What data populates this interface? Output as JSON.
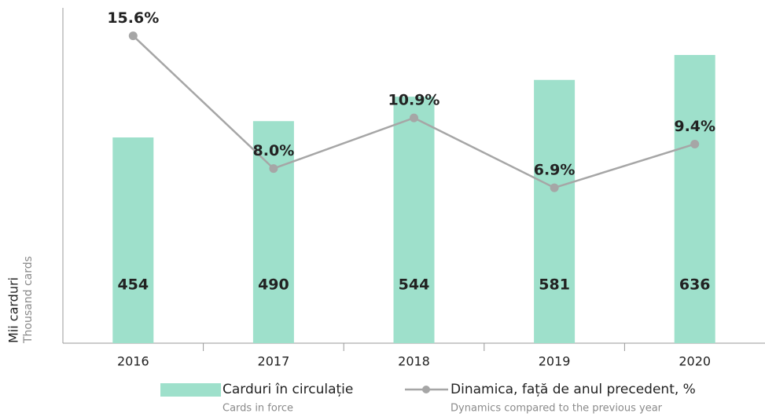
{
  "chart_data": {
    "type": "bar_line",
    "y_label": "Mii carduri",
    "y_label_subtitle": "Thousand cards",
    "categories": [
      "2016",
      "2017",
      "2018",
      "2019",
      "2020"
    ],
    "ylim": [
      0,
      740
    ],
    "y2lim": [
      -2,
      17.2
    ],
    "series": [
      {
        "name": "Carduri în circulație",
        "legend_subtitle": "Cards in force",
        "type": "bar",
        "color": "#9ee0cb",
        "values": [
          454,
          490,
          544,
          581,
          636
        ]
      },
      {
        "name": "Dinamica, față de anul precedent, %",
        "legend_subtitle": "Dynamics compared to the previous year",
        "type": "line",
        "axis": "y2",
        "color": "#a6a6a6",
        "values": [
          15.6,
          8.0,
          10.9,
          6.9,
          9.4
        ],
        "value_labels": [
          "15.6%",
          "8.0%",
          "10.9%",
          "6.9%",
          "9.4%"
        ]
      }
    ]
  }
}
